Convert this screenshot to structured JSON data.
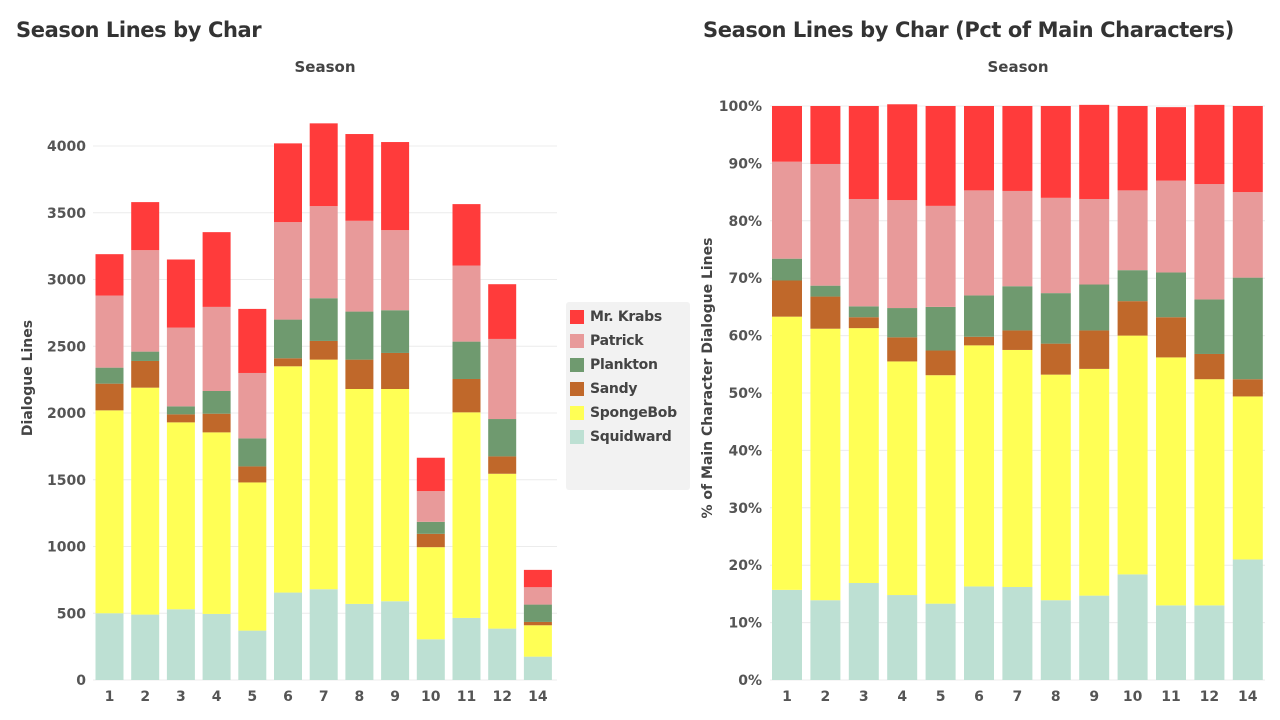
{
  "colors": {
    "Mr. Krabs": "#ff3b3b",
    "Patrick": "#e89a9a",
    "Plankton": "#6f9a6f",
    "Sandy": "#c0682a",
    "SpongeBob": "#ffff55",
    "Squidward": "#bde0d3"
  },
  "chart_data": [
    {
      "type": "bar",
      "stacked": true,
      "title": "Season Lines by Char",
      "xlabel": "Season",
      "ylabel": "Dialogue Lines",
      "categories": [
        "1",
        "2",
        "3",
        "4",
        "5",
        "6",
        "7",
        "8",
        "9",
        "10",
        "11",
        "12",
        "14"
      ],
      "ylim": [
        0,
        4300
      ],
      "yticks": [
        0,
        500,
        1000,
        1500,
        2000,
        2500,
        3000,
        3500,
        4000
      ],
      "grid": true,
      "series": [
        {
          "name": "Squidward",
          "values": [
            500,
            490,
            530,
            495,
            370,
            655,
            680,
            570,
            590,
            305,
            465,
            385,
            175
          ]
        },
        {
          "name": "SpongeBob",
          "values": [
            1520,
            1700,
            1400,
            1360,
            1110,
            1695,
            1720,
            1610,
            1590,
            690,
            1540,
            1160,
            235
          ]
        },
        {
          "name": "Sandy",
          "values": [
            200,
            200,
            60,
            140,
            120,
            60,
            140,
            220,
            270,
            100,
            250,
            130,
            25
          ]
        },
        {
          "name": "Plankton",
          "values": [
            120,
            70,
            60,
            170,
            210,
            290,
            320,
            360,
            320,
            90,
            280,
            280,
            130
          ]
        },
        {
          "name": "Patrick",
          "values": [
            540,
            760,
            590,
            630,
            490,
            730,
            690,
            680,
            600,
            230,
            570,
            600,
            130
          ]
        },
        {
          "name": "Mr. Krabs",
          "values": [
            310,
            360,
            510,
            560,
            480,
            590,
            620,
            650,
            660,
            250,
            460,
            410,
            130
          ]
        }
      ],
      "legend": "right"
    },
    {
      "type": "bar",
      "stacked": true,
      "percent": true,
      "title": "Season Lines by Char (Pct of Main Characters)",
      "xlabel": "Season",
      "ylabel": "% of Main Character Dialogue Lines",
      "categories": [
        "1",
        "2",
        "3",
        "4",
        "5",
        "6",
        "7",
        "8",
        "9",
        "10",
        "11",
        "12",
        "14"
      ],
      "ylim": [
        0,
        100
      ],
      "yticks": [
        "0%",
        "10%",
        "20%",
        "30%",
        "40%",
        "50%",
        "60%",
        "70%",
        "80%",
        "90%",
        "100%"
      ],
      "grid": true,
      "series": [
        {
          "name": "Squidward",
          "values": [
            15.7,
            13.9,
            16.9,
            14.8,
            13.3,
            16.3,
            16.2,
            13.9,
            14.7,
            18.4,
            13.0,
            13.0,
            21.0
          ]
        },
        {
          "name": "SpongeBob",
          "values": [
            47.6,
            47.3,
            44.4,
            40.7,
            39.8,
            42.0,
            41.3,
            39.3,
            39.5,
            41.6,
            43.2,
            39.4,
            28.4
          ]
        },
        {
          "name": "Sandy",
          "values": [
            6.3,
            5.6,
            1.9,
            4.2,
            4.3,
            1.5,
            3.4,
            5.4,
            6.7,
            6.0,
            7.0,
            4.4,
            3.0
          ]
        },
        {
          "name": "Plankton",
          "values": [
            3.8,
            1.9,
            1.9,
            5.1,
            7.6,
            7.2,
            7.7,
            8.8,
            8.0,
            5.4,
            7.8,
            9.5,
            17.7
          ]
        },
        {
          "name": "Patrick",
          "values": [
            16.9,
            21.2,
            18.7,
            18.8,
            17.6,
            18.3,
            16.6,
            16.6,
            14.9,
            13.9,
            16.0,
            20.1,
            14.9
          ]
        },
        {
          "name": "Mr. Krabs",
          "values": [
            9.7,
            10.1,
            16.2,
            16.7,
            17.4,
            14.7,
            14.8,
            16.0,
            16.4,
            14.7,
            12.8,
            13.8,
            15.0
          ]
        }
      ]
    }
  ],
  "legend": {
    "items": [
      "Mr. Krabs",
      "Patrick",
      "Plankton",
      "Sandy",
      "SpongeBob",
      "Squidward"
    ]
  }
}
